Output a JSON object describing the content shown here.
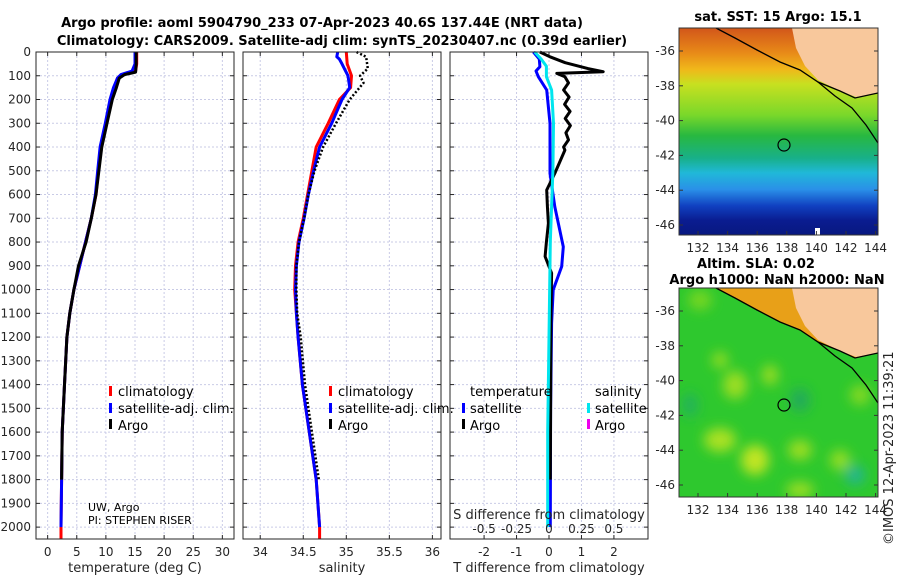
{
  "title": {
    "line1": "Argo profile: aoml 5904790_233 07-Apr-2023 40.6S 137.44E (NRT data)",
    "line2": "Climatology: CARS2009. Satellite-adj clim: synTS_20230407.nc (0.39d earlier)"
  },
  "source": {
    "line1": "UW, Argo",
    "line2": "PI: STEPHEN RISER"
  },
  "colors": {
    "climatology": "#ff0000",
    "satellite": "#0000ff",
    "argo": "#000000",
    "sal_satellite": "#00e5ee",
    "sal_argo": "#ee00ee",
    "land": "#f8c89c"
  },
  "chart_data": [
    {
      "type": "line",
      "name": "temperature",
      "xlabel": "temperature (deg C)",
      "xlim": [
        -2,
        32
      ],
      "xticks": [
        0,
        5,
        10,
        15,
        20,
        25,
        30
      ],
      "ylim": [
        0,
        2050
      ],
      "yticks": [
        0,
        100,
        200,
        300,
        400,
        500,
        600,
        700,
        800,
        900,
        1000,
        1100,
        1200,
        1300,
        1400,
        1500,
        1600,
        1700,
        1800,
        1900,
        2000
      ],
      "y_reversed": true,
      "grid": true,
      "legend": [
        "climatology",
        "satellite-adj. clim.",
        "Argo"
      ],
      "series": [
        {
          "name": "climatology",
          "color": "#ff0000",
          "depth": [
            0,
            50,
            80,
            95,
            110,
            150,
            200,
            300,
            400,
            500,
            600,
            700,
            800,
            900,
            1000,
            1100,
            1200,
            1400,
            1600,
            1800,
            2000,
            2050
          ],
          "values": [
            15.3,
            15.3,
            15.1,
            13.0,
            12.0,
            11.4,
            10.8,
            10.0,
            9.1,
            8.7,
            8.3,
            7.5,
            6.5,
            5.5,
            4.5,
            3.8,
            3.3,
            2.9,
            2.5,
            2.4,
            2.3,
            2.3
          ]
        },
        {
          "name": "satellite-adj. clim.",
          "color": "#0000ff",
          "depth": [
            0,
            50,
            80,
            95,
            110,
            150,
            200,
            300,
            400,
            500,
            600,
            700,
            800,
            900,
            1000,
            1100,
            1200,
            1400,
            1600,
            1800,
            2000
          ],
          "values": [
            15.0,
            15.0,
            14.5,
            12.6,
            12.0,
            11.3,
            10.7,
            9.9,
            9.0,
            8.6,
            8.2,
            7.5,
            6.5,
            5.5,
            4.5,
            3.8,
            3.3,
            2.9,
            2.5,
            2.4,
            2.3
          ]
        },
        {
          "name": "Argo",
          "color": "#000000",
          "depth": [
            0,
            50,
            85,
            95,
            110,
            150,
            200,
            300,
            400,
            500,
            600,
            700,
            800,
            900,
            1000,
            1100,
            1200,
            1400,
            1600,
            1800
          ],
          "values": [
            15.2,
            15.2,
            15.1,
            13.2,
            12.3,
            11.8,
            11.1,
            10.2,
            9.3,
            8.8,
            8.3,
            7.5,
            6.6,
            5.3,
            4.5,
            3.8,
            3.3,
            2.9,
            2.5,
            2.4
          ]
        }
      ]
    },
    {
      "type": "line",
      "name": "salinity",
      "xlabel": "salinity",
      "xlim": [
        33.8,
        36.1
      ],
      "xticks": [
        34,
        34.5,
        35,
        35.5,
        36
      ],
      "ylim": [
        0,
        2050
      ],
      "y_reversed": true,
      "grid": true,
      "legend": [
        "climatology",
        "satellite-adj. clim.",
        "Argo"
      ],
      "series": [
        {
          "name": "climatology",
          "color": "#ff0000",
          "depth": [
            0,
            50,
            100,
            150,
            200,
            300,
            400,
            500,
            600,
            700,
            800,
            900,
            1000,
            1100,
            1200,
            1400,
            1600,
            1800,
            2000,
            2050
          ],
          "values": [
            35.0,
            35.01,
            35.06,
            35.05,
            34.92,
            34.79,
            34.65,
            34.6,
            34.55,
            34.5,
            34.44,
            34.41,
            34.4,
            34.42,
            34.44,
            34.49,
            34.57,
            34.65,
            34.69,
            34.69
          ]
        },
        {
          "name": "satellite-adj. clim.",
          "color": "#0000ff",
          "depth": [
            0,
            20,
            30,
            50,
            100,
            150,
            200,
            300,
            400,
            500,
            600,
            700,
            800,
            900,
            1000,
            1100,
            1200,
            1400,
            1600,
            1800,
            2000
          ],
          "values": [
            34.9,
            34.89,
            34.92,
            34.95,
            35.02,
            35.04,
            34.95,
            34.83,
            34.69,
            34.62,
            34.56,
            34.51,
            34.45,
            34.42,
            34.41,
            34.42,
            34.44,
            34.49,
            34.57,
            34.65,
            34.69
          ]
        },
        {
          "name": "Argo",
          "color": "#000000",
          "dashed": true,
          "depth": [
            0,
            20,
            70,
            100,
            130,
            200,
            300,
            400,
            500,
            600,
            700,
            800,
            900,
            1000,
            1100,
            1200,
            1400,
            1600,
            1800
          ],
          "values": [
            35.12,
            35.23,
            35.25,
            35.16,
            35.2,
            35.04,
            34.88,
            34.73,
            34.63,
            34.56,
            34.51,
            34.45,
            34.42,
            34.42,
            34.43,
            34.47,
            34.52,
            34.6,
            34.68
          ]
        }
      ]
    },
    {
      "type": "line",
      "name": "difference",
      "xlabel": "T difference from climatology",
      "xlim": [
        -3.05,
        3.05
      ],
      "xticks": [
        -2,
        -1,
        0,
        1,
        2
      ],
      "x2label": "S difference from climatology",
      "x2lim": [
        -0.7625,
        0.7625
      ],
      "x2ticks": [
        -0.5,
        -0.25,
        0,
        0.25,
        0.5
      ],
      "x2ticklabels": [
        "-0.5",
        "-0.25",
        "0",
        "0.25",
        "0.5"
      ],
      "ylim": [
        0,
        2050
      ],
      "y_reversed": true,
      "grid": true,
      "legend_titles": [
        "temperature",
        "salinity"
      ],
      "legend": [
        "satellite",
        "Argo",
        "satellite",
        "Argo"
      ],
      "series": [
        {
          "name": "T satellite",
          "axis": "T",
          "color": "#0000ff",
          "depth": [
            0,
            30,
            62,
            80,
            104,
            160,
            300,
            511,
            651,
            820,
            903,
            1001,
            1142,
            1500,
            2000
          ],
          "values": [
            -0.48,
            -0.3,
            -0.28,
            -0.4,
            -0.33,
            -0.07,
            0.03,
            0.03,
            0.18,
            0.44,
            0.39,
            0.13,
            0.08,
            0.05,
            0.04
          ]
        },
        {
          "name": "T Argo",
          "axis": "T",
          "color": "#000000",
          "depth": [
            0,
            20,
            45,
            70,
            83,
            90,
            104,
            130,
            160,
            190,
            220,
            250,
            280,
            310,
            340,
            370,
            400,
            413,
            511,
            581,
            650,
            721,
            800,
            861,
            931,
            1100,
            1500,
            1800
          ],
          "values": [
            -0.28,
            0.03,
            0.5,
            1.2,
            1.67,
            0.24,
            0.49,
            0.6,
            0.45,
            0.62,
            0.48,
            0.65,
            0.5,
            0.66,
            0.52,
            0.6,
            0.45,
            0.49,
            0.18,
            -0.07,
            -0.05,
            -0.02,
            -0.08,
            -0.12,
            0.08,
            0.06,
            0.05,
            0.04
          ]
        },
        {
          "name": "S satellite",
          "axis": "S",
          "color": "#00e5ee",
          "depth": [
            0,
            30,
            60,
            104,
            160,
            300,
            500,
            800,
            1200,
            1600,
            2000
          ],
          "values": [
            -0.11,
            -0.06,
            -0.02,
            -0.02,
            0.02,
            0.035,
            0.03,
            0.01,
            0.0,
            -0.01,
            -0.01
          ]
        }
      ]
    }
  ],
  "maps": {
    "sst": {
      "title": "sat. SST: 15 Argo: 15.1"
    },
    "sla": {
      "title_line1": "Altim. SLA: 0.02",
      "title_line2": "Argo h1000: NaN h2000: NaN"
    },
    "lon_ticks": [
      "132",
      "134",
      "136",
      "138",
      "140",
      "142",
      "144"
    ],
    "lat_ticks": [
      "-36",
      "-38",
      "-40",
      "-42",
      "-44",
      "-46"
    ],
    "float_position": {
      "lat": -40.6,
      "lon": 137.44
    }
  },
  "stamp": "©IMOS 12-Apr-2023 11:39:21"
}
